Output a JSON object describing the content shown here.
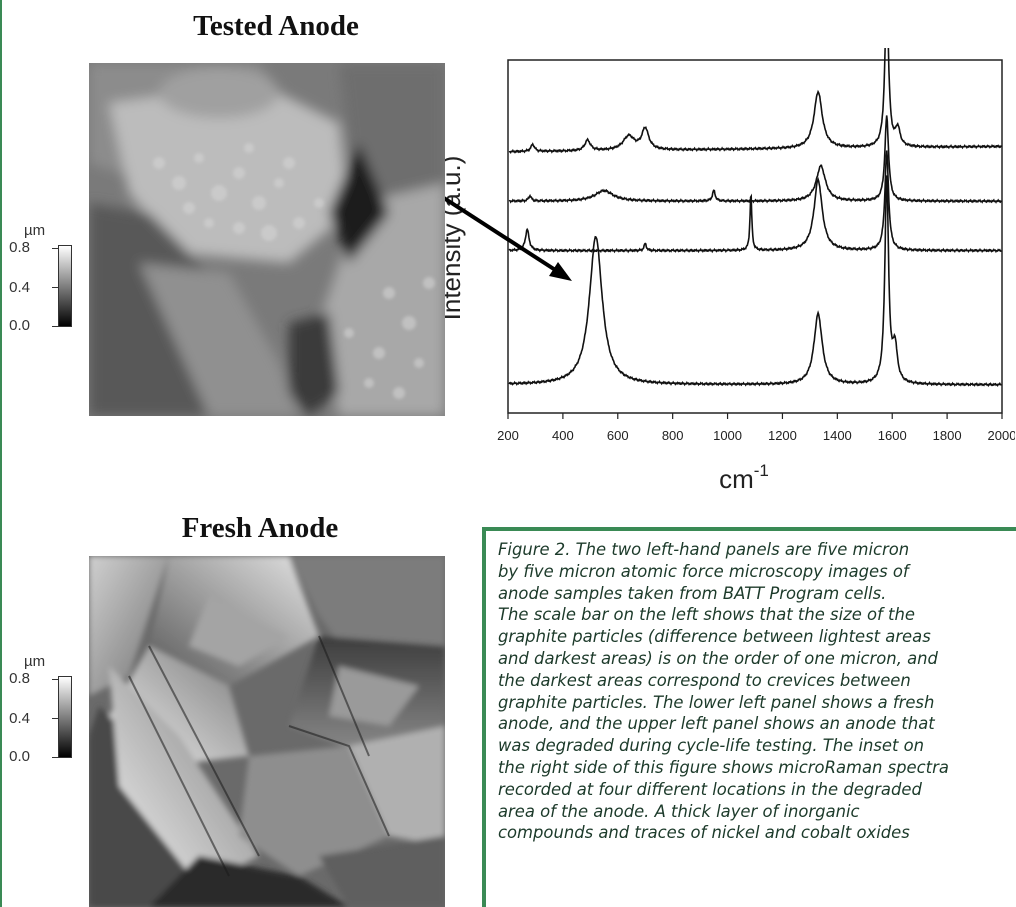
{
  "tested_panel": {
    "title": "Tested Anode",
    "scale": {
      "unit": "µm",
      "ticks": [
        "0.8",
        "0.4",
        "0.0"
      ]
    }
  },
  "fresh_panel": {
    "title": "Fresh Anode",
    "scale": {
      "unit": "µm",
      "ticks": [
        "0.8",
        "0.4",
        "0.0"
      ]
    }
  },
  "chart_data": {
    "type": "line",
    "title": "",
    "xlabel": "cm",
    "xlabel_superscript": "-1",
    "ylabel": "Intensity (a.u.)",
    "xlim": [
      200,
      2000
    ],
    "xticks": [
      "200",
      "400",
      "600",
      "800",
      "1000",
      "1200",
      "1400",
      "1600",
      "1800",
      "2000"
    ],
    "series": [
      {
        "offset": 0.08,
        "peaks": [
          [
            520,
            0.42,
            28
          ],
          [
            1330,
            0.2,
            18
          ],
          [
            1580,
            0.58,
            8
          ],
          [
            1610,
            0.1,
            10
          ]
        ],
        "baseline_slope": 0.0
      },
      {
        "offset": 0.46,
        "peaks": [
          [
            270,
            0.06,
            8
          ],
          [
            700,
            0.02,
            5
          ],
          [
            1085,
            0.16,
            4
          ],
          [
            1330,
            0.2,
            18
          ],
          [
            1580,
            0.28,
            8
          ]
        ],
        "baseline_slope": 0.0
      },
      {
        "offset": 0.6,
        "peaks": [
          [
            280,
            0.015,
            6
          ],
          [
            550,
            0.03,
            40
          ],
          [
            950,
            0.03,
            6
          ],
          [
            1340,
            0.1,
            20
          ],
          [
            1580,
            0.24,
            8
          ]
        ],
        "baseline_slope": 0.0
      },
      {
        "offset": 0.74,
        "peaks": [
          [
            290,
            0.02,
            8
          ],
          [
            490,
            0.03,
            12
          ],
          [
            640,
            0.04,
            25
          ],
          [
            700,
            0.06,
            15
          ],
          [
            1330,
            0.16,
            18
          ],
          [
            1580,
            0.43,
            8
          ],
          [
            1620,
            0.05,
            10
          ]
        ],
        "baseline_slope": 0.015
      }
    ],
    "grid": false,
    "legend": "none"
  },
  "caption": {
    "lines": [
      "Figure 2. The two left-hand panels are five micron",
      "by five micron atomic force microscopy images of",
      "anode samples taken from BATT Program cells.",
      "The scale bar on the left shows that the size of the",
      "graphite particles (difference between lightest areas",
      "and darkest areas) is on the order of one micron, and",
      "the darkest areas correspond to crevices between",
      "graphite particles. The lower left panel shows a fresh",
      "anode, and the upper left panel shows an anode that",
      "was degraded during cycle-life testing. The inset on",
      "the right side of this figure shows microRaman spectra",
      "recorded at four different locations in the degraded",
      "area of the anode. A thick layer of inorganic",
      "compounds and traces of nickel and cobalt oxides"
    ]
  }
}
